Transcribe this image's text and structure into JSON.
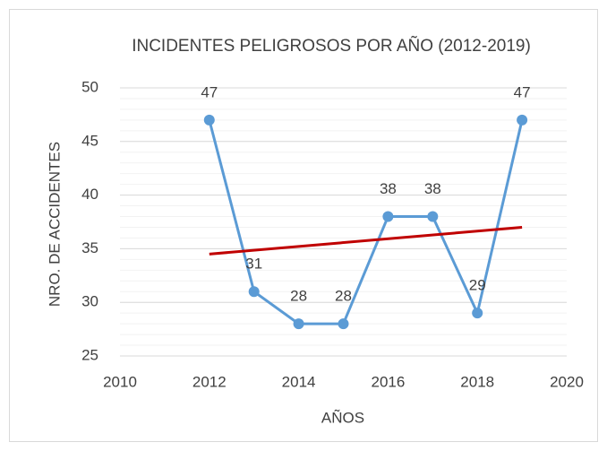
{
  "chart_data": {
    "type": "line",
    "title": "INCIDENTES PELIGROSOS POR AÑO (2012-2019)",
    "x_label": "AÑOS",
    "y_label": "NRO. DE ACCIDENTES",
    "x": [
      2012,
      2013,
      2014,
      2015,
      2016,
      2017,
      2018,
      2019
    ],
    "series": [
      {
        "color": "#5b9bd5",
        "values": [
          47,
          31,
          28,
          28,
          38,
          38,
          29,
          47
        ]
      }
    ],
    "trendline": {
      "color": "#c00000",
      "x": [
        2012,
        2019
      ],
      "values": [
        34.5,
        37
      ]
    },
    "xlim": [
      2010,
      2020
    ],
    "xticks": [
      2010,
      2012,
      2014,
      2016,
      2018,
      2020
    ],
    "ylim": [
      25,
      50
    ],
    "yticks": [
      25,
      30,
      35,
      40,
      45,
      50
    ],
    "grid": true,
    "minor_grid": true,
    "data_labels": true
  }
}
